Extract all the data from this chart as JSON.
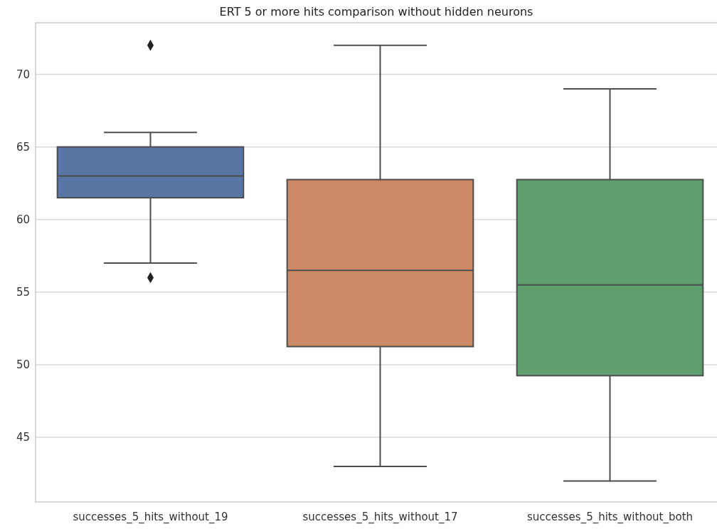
{
  "chart_data": {
    "type": "box",
    "title": "ERT 5 or more hits comparison without hidden neurons",
    "categories": [
      "successes_5_hits_without_19",
      "successes_5_hits_without_17",
      "successes_5_hits_without_both"
    ],
    "colors": [
      "#5875a4",
      "#cc8963",
      "#5f9e6e"
    ],
    "boxes": [
      {
        "low": 57,
        "q1": 61.5,
        "median": 63,
        "q3": 65,
        "high": 66,
        "outliers": [
          72,
          56
        ]
      },
      {
        "low": 43,
        "q1": 51.25,
        "median": 56.5,
        "q3": 62.75,
        "high": 72
      },
      {
        "low": 42,
        "q1": 49.25,
        "median": 55.5,
        "q3": 62.75,
        "high": 69
      }
    ],
    "ylim": [
      40.55,
      73.55
    ],
    "yticks": [
      45,
      50,
      55,
      60,
      65,
      70
    ],
    "grid": "y",
    "marker": "diamond"
  }
}
